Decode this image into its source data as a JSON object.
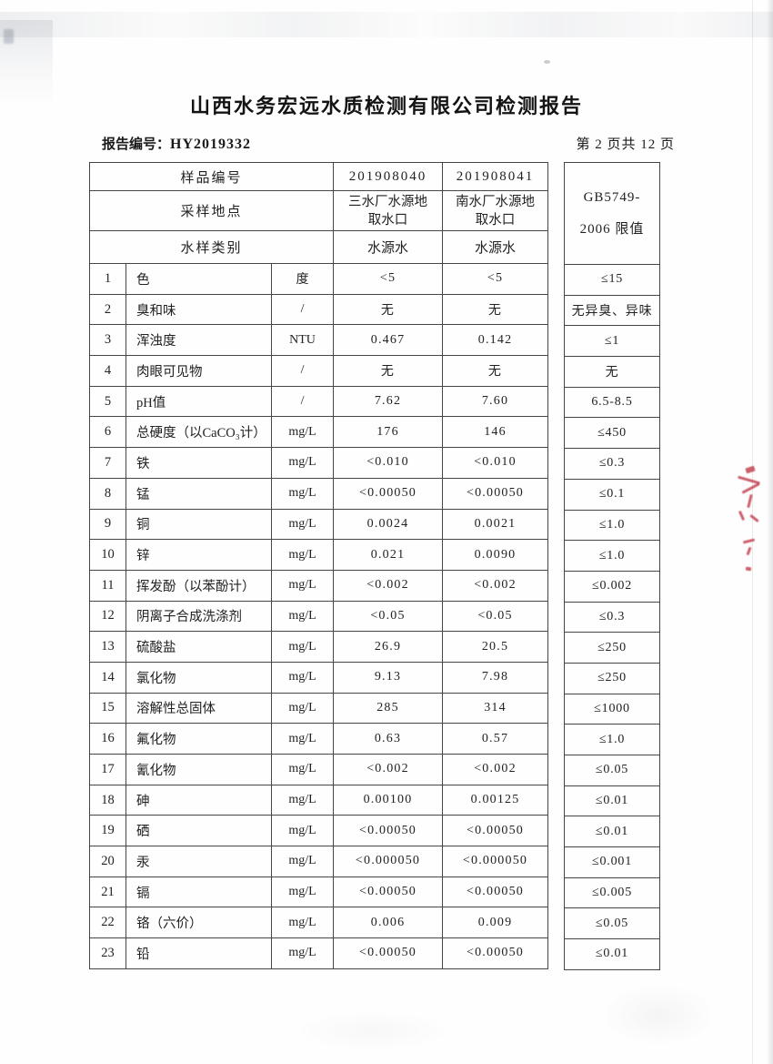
{
  "page": {
    "title": "山西水务宏远水质检测有限公司检测报告",
    "report_no_label": "报告编号：",
    "report_no": "HY2019332",
    "page_indicator": "第 2 页共 12 页"
  },
  "table": {
    "header": {
      "sample_no_label": "样品编号",
      "sample_nos": [
        "201908040",
        "201908041"
      ],
      "location_label": "采样地点",
      "locations": [
        "三水厂水源地取水口",
        "南水厂水源地取水口"
      ],
      "type_label": "水样类别",
      "types": [
        "水源水",
        "水源水"
      ],
      "limit_header_line1": "GB5749-",
      "limit_header_line2": "2006 限值"
    },
    "rows": [
      {
        "no": "1",
        "name": "色",
        "unit": "度",
        "v1": "<5",
        "v2": "<5",
        "limit": "≤15"
      },
      {
        "no": "2",
        "name": "臭和味",
        "unit": "/",
        "v1": "无",
        "v2": "无",
        "limit": "无异臭、异味"
      },
      {
        "no": "3",
        "name": "浑浊度",
        "unit": "NTU",
        "v1": "0.467",
        "v2": "0.142",
        "limit": "≤1"
      },
      {
        "no": "4",
        "name": "肉眼可见物",
        "unit": "/",
        "v1": "无",
        "v2": "无",
        "limit": "无"
      },
      {
        "no": "5",
        "name": "pH值",
        "unit": "/",
        "v1": "7.62",
        "v2": "7.60",
        "limit": "6.5-8.5"
      },
      {
        "no": "6",
        "name": "总硬度（以CaCO₃计）",
        "unit": "mg/L",
        "v1": "176",
        "v2": "146",
        "limit": "≤450"
      },
      {
        "no": "7",
        "name": "铁",
        "unit": "mg/L",
        "v1": "<0.010",
        "v2": "<0.010",
        "limit": "≤0.3"
      },
      {
        "no": "8",
        "name": "锰",
        "unit": "mg/L",
        "v1": "<0.00050",
        "v2": "<0.00050",
        "limit": "≤0.1"
      },
      {
        "no": "9",
        "name": "铜",
        "unit": "mg/L",
        "v1": "0.0024",
        "v2": "0.0021",
        "limit": "≤1.0"
      },
      {
        "no": "10",
        "name": "锌",
        "unit": "mg/L",
        "v1": "0.021",
        "v2": "0.0090",
        "limit": "≤1.0"
      },
      {
        "no": "11",
        "name": "挥发酚（以苯酚计）",
        "unit": "mg/L",
        "v1": "<0.002",
        "v2": "<0.002",
        "limit": "≤0.002"
      },
      {
        "no": "12",
        "name": "阴离子合成洗涤剂",
        "unit": "mg/L",
        "v1": "<0.05",
        "v2": "<0.05",
        "limit": "≤0.3"
      },
      {
        "no": "13",
        "name": "硫酸盐",
        "unit": "mg/L",
        "v1": "26.9",
        "v2": "20.5",
        "limit": "≤250"
      },
      {
        "no": "14",
        "name": "氯化物",
        "unit": "mg/L",
        "v1": "9.13",
        "v2": "7.98",
        "limit": "≤250"
      },
      {
        "no": "15",
        "name": "溶解性总固体",
        "unit": "mg/L",
        "v1": "285",
        "v2": "314",
        "limit": "≤1000"
      },
      {
        "no": "16",
        "name": "氟化物",
        "unit": "mg/L",
        "v1": "0.63",
        "v2": "0.57",
        "limit": "≤1.0"
      },
      {
        "no": "17",
        "name": "氰化物",
        "unit": "mg/L",
        "v1": "<0.002",
        "v2": "<0.002",
        "limit": "≤0.05"
      },
      {
        "no": "18",
        "name": "砷",
        "unit": "mg/L",
        "v1": "0.00100",
        "v2": "0.00125",
        "limit": "≤0.01"
      },
      {
        "no": "19",
        "name": "硒",
        "unit": "mg/L",
        "v1": "<0.00050",
        "v2": "<0.00050",
        "limit": "≤0.01"
      },
      {
        "no": "20",
        "name": "汞",
        "unit": "mg/L",
        "v1": "<0.000050",
        "v2": "<0.000050",
        "limit": "≤0.001"
      },
      {
        "no": "21",
        "name": "镉",
        "unit": "mg/L",
        "v1": "<0.00050",
        "v2": "<0.00050",
        "limit": "≤0.005"
      },
      {
        "no": "22",
        "name": "铬（六价）",
        "unit": "mg/L",
        "v1": "0.006",
        "v2": "0.009",
        "limit": "≤0.05"
      },
      {
        "no": "23",
        "name": "铅",
        "unit": "mg/L",
        "v1": "<0.00050",
        "v2": "<0.00050",
        "limit": "≤0.01"
      }
    ]
  }
}
